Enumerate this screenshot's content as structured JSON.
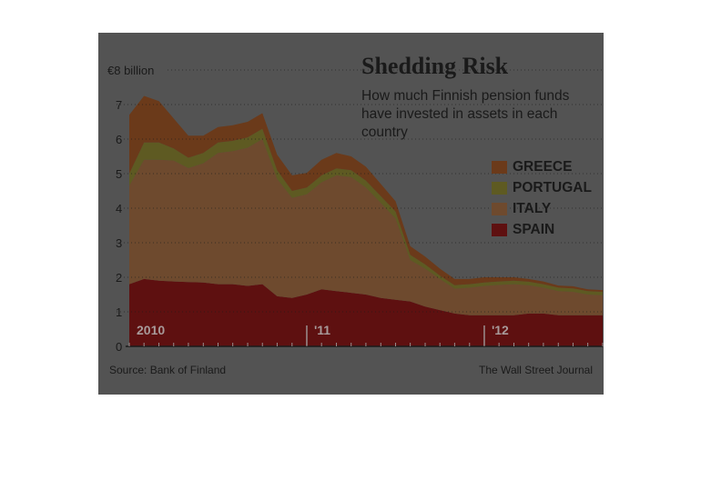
{
  "chart_data": {
    "type": "area",
    "stacked": true,
    "title": "Shedding Risk",
    "subtitle": "How much Finnish pension funds have invested in assets in each country",
    "ylabel": "",
    "ylim": [
      0,
      8
    ],
    "y_ticks": [
      "0",
      "1",
      "2",
      "3",
      "4",
      "5",
      "6",
      "7",
      "€8 billion"
    ],
    "x_year_labels": [
      {
        "label": "2010",
        "x": 2010.0
      },
      {
        "label": "'11",
        "x": 2011.0
      },
      {
        "label": "'12",
        "x": 2012.0
      }
    ],
    "x": [
      2010.0,
      2010.083,
      2010.167,
      2010.25,
      2010.333,
      2010.417,
      2010.5,
      2010.583,
      2010.667,
      2010.75,
      2010.833,
      2010.917,
      2011.0,
      2011.083,
      2011.167,
      2011.25,
      2011.333,
      2011.417,
      2011.5,
      2011.583,
      2011.667,
      2011.75,
      2011.833,
      2011.917,
      2012.0,
      2012.083,
      2012.167,
      2012.25,
      2012.333,
      2012.417,
      2012.5,
      2012.583,
      2012.667
    ],
    "series": [
      {
        "name": "SPAIN",
        "color": "#5e1010",
        "values": [
          1.8,
          1.95,
          1.9,
          1.88,
          1.86,
          1.85,
          1.8,
          1.8,
          1.75,
          1.8,
          1.45,
          1.4,
          1.5,
          1.65,
          1.6,
          1.55,
          1.5,
          1.4,
          1.35,
          1.3,
          1.15,
          1.05,
          0.95,
          0.9,
          0.9,
          0.9,
          0.9,
          0.95,
          0.95,
          0.9,
          0.9,
          0.9,
          0.9
        ]
      },
      {
        "name": "ITALY",
        "color": "#6e4a2e",
        "values": [
          2.85,
          3.45,
          3.5,
          3.5,
          3.3,
          3.45,
          3.8,
          3.85,
          4.0,
          4.2,
          3.4,
          2.9,
          2.9,
          3.1,
          3.35,
          3.35,
          3.1,
          2.75,
          2.35,
          1.2,
          1.1,
          0.9,
          0.72,
          0.8,
          0.85,
          0.88,
          0.9,
          0.82,
          0.75,
          0.7,
          0.68,
          0.6,
          0.58
        ]
      },
      {
        "name": "PORTUGAL",
        "color": "#5e5a22",
        "values": [
          0.35,
          0.5,
          0.5,
          0.35,
          0.3,
          0.3,
          0.3,
          0.3,
          0.3,
          0.3,
          0.25,
          0.2,
          0.2,
          0.2,
          0.2,
          0.2,
          0.2,
          0.2,
          0.2,
          0.15,
          0.12,
          0.1,
          0.1,
          0.1,
          0.1,
          0.1,
          0.1,
          0.1,
          0.1,
          0.1,
          0.1,
          0.1,
          0.1
        ]
      },
      {
        "name": "GREECE",
        "color": "#6b3a1a",
        "values": [
          1.7,
          1.35,
          1.2,
          0.87,
          0.64,
          0.5,
          0.45,
          0.45,
          0.45,
          0.45,
          0.45,
          0.45,
          0.42,
          0.45,
          0.45,
          0.4,
          0.4,
          0.35,
          0.3,
          0.25,
          0.23,
          0.2,
          0.18,
          0.15,
          0.15,
          0.12,
          0.1,
          0.08,
          0.08,
          0.06,
          0.06,
          0.05,
          0.05
        ]
      }
    ],
    "legend_placement": "right"
  },
  "footer": {
    "source": "Source: Bank of Finland",
    "credit": "The Wall Street Journal"
  }
}
